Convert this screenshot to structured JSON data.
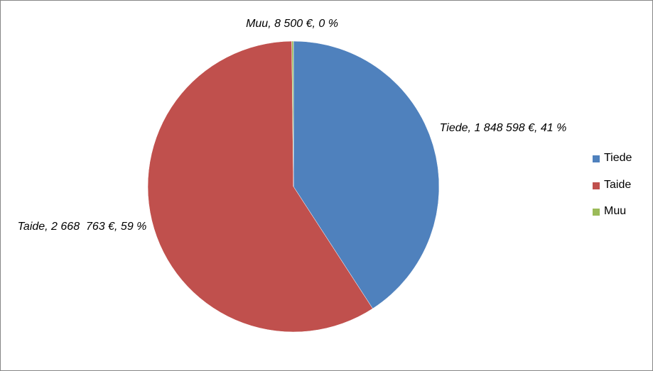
{
  "chart_data": {
    "type": "pie",
    "categories": [
      "Tiede",
      "Taide",
      "Muu"
    ],
    "values": [
      1848598,
      2668763,
      8500
    ],
    "value_labels": [
      "Tiede, 1 848 598 €, 41 %",
      "Taide, 2 668  763 €, 59 %",
      "Muu, 8 500 €, 0 %"
    ],
    "colors": [
      "#4f81bd",
      "#c0504d",
      "#9bbb59"
    ],
    "legend": "right"
  }
}
